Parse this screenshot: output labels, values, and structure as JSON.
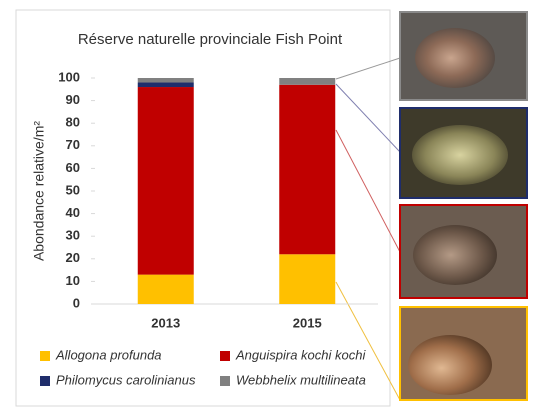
{
  "chart_data": {
    "type": "bar",
    "stacked": true,
    "title": "Réserve naturelle provinciale Fish Point",
    "ylabel": "Abondance relative/m²",
    "categories": [
      "2013",
      "2015"
    ],
    "series": [
      {
        "name": "Allogona profunda",
        "color": "#ffc000",
        "values": [
          13,
          22
        ]
      },
      {
        "name": "Anguispira kochi kochi",
        "color": "#c00000",
        "values": [
          83,
          75
        ]
      },
      {
        "name": "Philomycus carolinianus",
        "color": "#1f2d6b",
        "values": [
          2,
          0
        ]
      },
      {
        "name": "Webbhelix multilineata",
        "color": "#808080",
        "values": [
          2,
          3
        ]
      }
    ],
    "ylim": [
      0,
      100
    ],
    "yticks": [
      0,
      10,
      20,
      30,
      40,
      50,
      60,
      70,
      80,
      90,
      100
    ],
    "grid": false
  }
}
